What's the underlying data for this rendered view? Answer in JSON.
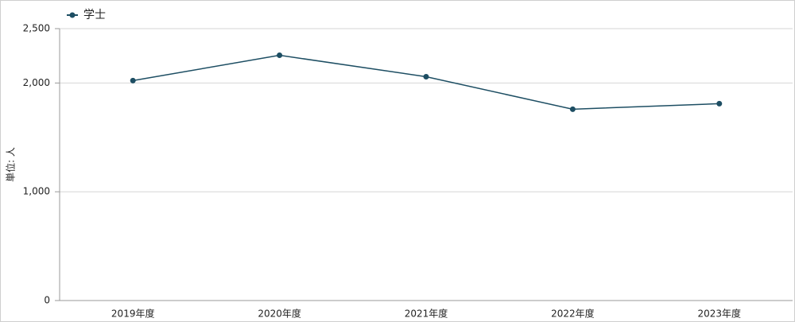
{
  "chart_data": {
    "type": "line",
    "y_label": "単位: 人",
    "categories": [
      "2019年度",
      "2020年度",
      "2021年度",
      "2022年度",
      "2023年度"
    ],
    "series": [
      {
        "name": "学士",
        "color": "#1d4e63",
        "values": [
          2022,
          2255,
          2058,
          1759,
          1810
        ]
      }
    ],
    "ylim": [
      0,
      2500
    ],
    "yticks": [
      0,
      {
        "value": 1000,
        "label": "1,000"
      },
      {
        "value": 2000,
        "label": "2,000"
      },
      {
        "value": 2500,
        "label": "2,500"
      }
    ],
    "grid": true,
    "legend": "top-left"
  }
}
